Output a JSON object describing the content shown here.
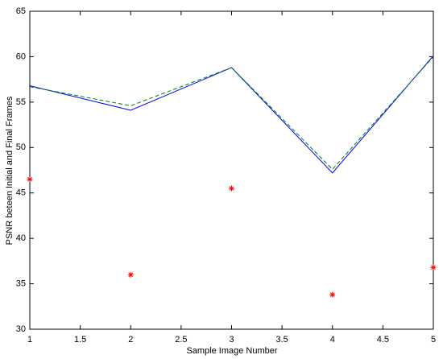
{
  "chart_data": {
    "type": "line",
    "xlabel": "Sample Image Number",
    "ylabel": "PSNR beteen Initial and Final Frames",
    "x": [
      1,
      2,
      3,
      4,
      5
    ],
    "series": [
      {
        "color": "#0000ff",
        "linestyle": "solid",
        "marker": "none",
        "values": [
          56.8,
          54.1,
          58.8,
          47.2,
          60.1
        ]
      },
      {
        "color": "#008000",
        "linestyle": "dashed",
        "marker": "none",
        "values": [
          56.7,
          54.6,
          58.8,
          47.6,
          60.0
        ]
      },
      {
        "color": "#ff0000",
        "linestyle": "none",
        "marker": "*",
        "values": [
          46.5,
          36.0,
          45.5,
          33.8,
          36.8
        ]
      }
    ],
    "xlim": [
      1,
      5
    ],
    "xticks": [
      1,
      1.5,
      2,
      2.5,
      3,
      3.5,
      4,
      4.5,
      5
    ],
    "ylim": [
      30,
      65
    ],
    "yticks": [
      30,
      35,
      40,
      45,
      50,
      55,
      60,
      65
    ],
    "grid": false
  }
}
